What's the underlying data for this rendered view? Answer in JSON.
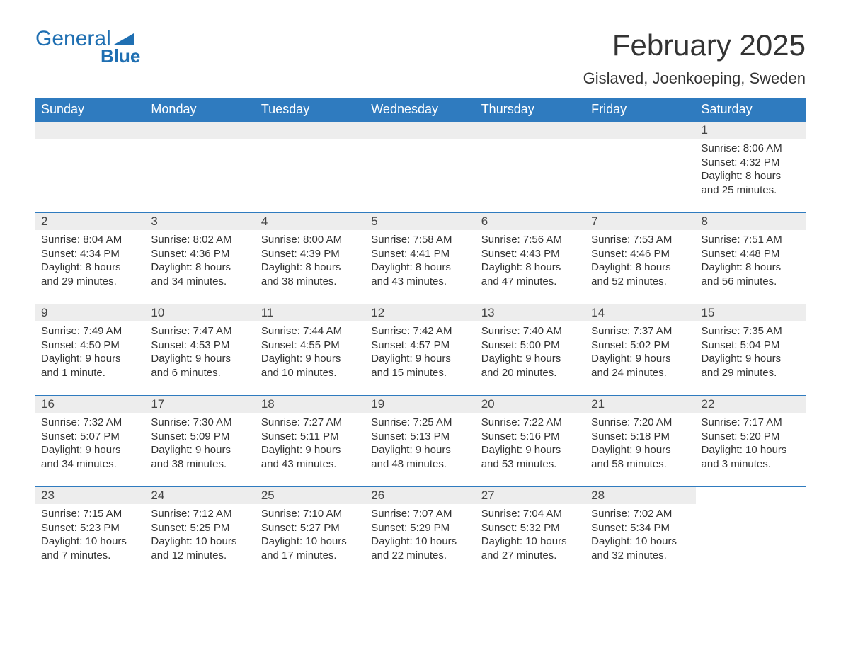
{
  "logo": {
    "word1": "General",
    "word2": "Blue",
    "icon_color": "#1f6fb2"
  },
  "header": {
    "month_title": "February 2025",
    "location": "Gislaved, Joenkoeping, Sweden"
  },
  "colors": {
    "header_bg": "#2f7bbf",
    "header_text": "#ffffff",
    "daynum_bg": "#ededed",
    "row_border": "#2f7bbf",
    "body_text": "#333333",
    "page_bg": "#ffffff"
  },
  "typography": {
    "title_fontsize": 42,
    "location_fontsize": 22,
    "weekday_fontsize": 18,
    "daynum_fontsize": 17,
    "cell_fontsize": 15,
    "font_family": "Arial"
  },
  "layout": {
    "columns": 7,
    "rows": 5,
    "first_day_column_index": 6
  },
  "weekdays": [
    "Sunday",
    "Monday",
    "Tuesday",
    "Wednesday",
    "Thursday",
    "Friday",
    "Saturday"
  ],
  "labels": {
    "sunrise": "Sunrise:",
    "sunset": "Sunset:",
    "daylight": "Daylight:"
  },
  "days": [
    {
      "n": 1,
      "sunrise": "8:06 AM",
      "sunset": "4:32 PM",
      "daylight": "8 hours and 25 minutes."
    },
    {
      "n": 2,
      "sunrise": "8:04 AM",
      "sunset": "4:34 PM",
      "daylight": "8 hours and 29 minutes."
    },
    {
      "n": 3,
      "sunrise": "8:02 AM",
      "sunset": "4:36 PM",
      "daylight": "8 hours and 34 minutes."
    },
    {
      "n": 4,
      "sunrise": "8:00 AM",
      "sunset": "4:39 PM",
      "daylight": "8 hours and 38 minutes."
    },
    {
      "n": 5,
      "sunrise": "7:58 AM",
      "sunset": "4:41 PM",
      "daylight": "8 hours and 43 minutes."
    },
    {
      "n": 6,
      "sunrise": "7:56 AM",
      "sunset": "4:43 PM",
      "daylight": "8 hours and 47 minutes."
    },
    {
      "n": 7,
      "sunrise": "7:53 AM",
      "sunset": "4:46 PM",
      "daylight": "8 hours and 52 minutes."
    },
    {
      "n": 8,
      "sunrise": "7:51 AM",
      "sunset": "4:48 PM",
      "daylight": "8 hours and 56 minutes."
    },
    {
      "n": 9,
      "sunrise": "7:49 AM",
      "sunset": "4:50 PM",
      "daylight": "9 hours and 1 minute."
    },
    {
      "n": 10,
      "sunrise": "7:47 AM",
      "sunset": "4:53 PM",
      "daylight": "9 hours and 6 minutes."
    },
    {
      "n": 11,
      "sunrise": "7:44 AM",
      "sunset": "4:55 PM",
      "daylight": "9 hours and 10 minutes."
    },
    {
      "n": 12,
      "sunrise": "7:42 AM",
      "sunset": "4:57 PM",
      "daylight": "9 hours and 15 minutes."
    },
    {
      "n": 13,
      "sunrise": "7:40 AM",
      "sunset": "5:00 PM",
      "daylight": "9 hours and 20 minutes."
    },
    {
      "n": 14,
      "sunrise": "7:37 AM",
      "sunset": "5:02 PM",
      "daylight": "9 hours and 24 minutes."
    },
    {
      "n": 15,
      "sunrise": "7:35 AM",
      "sunset": "5:04 PM",
      "daylight": "9 hours and 29 minutes."
    },
    {
      "n": 16,
      "sunrise": "7:32 AM",
      "sunset": "5:07 PM",
      "daylight": "9 hours and 34 minutes."
    },
    {
      "n": 17,
      "sunrise": "7:30 AM",
      "sunset": "5:09 PM",
      "daylight": "9 hours and 38 minutes."
    },
    {
      "n": 18,
      "sunrise": "7:27 AM",
      "sunset": "5:11 PM",
      "daylight": "9 hours and 43 minutes."
    },
    {
      "n": 19,
      "sunrise": "7:25 AM",
      "sunset": "5:13 PM",
      "daylight": "9 hours and 48 minutes."
    },
    {
      "n": 20,
      "sunrise": "7:22 AM",
      "sunset": "5:16 PM",
      "daylight": "9 hours and 53 minutes."
    },
    {
      "n": 21,
      "sunrise": "7:20 AM",
      "sunset": "5:18 PM",
      "daylight": "9 hours and 58 minutes."
    },
    {
      "n": 22,
      "sunrise": "7:17 AM",
      "sunset": "5:20 PM",
      "daylight": "10 hours and 3 minutes."
    },
    {
      "n": 23,
      "sunrise": "7:15 AM",
      "sunset": "5:23 PM",
      "daylight": "10 hours and 7 minutes."
    },
    {
      "n": 24,
      "sunrise": "7:12 AM",
      "sunset": "5:25 PM",
      "daylight": "10 hours and 12 minutes."
    },
    {
      "n": 25,
      "sunrise": "7:10 AM",
      "sunset": "5:27 PM",
      "daylight": "10 hours and 17 minutes."
    },
    {
      "n": 26,
      "sunrise": "7:07 AM",
      "sunset": "5:29 PM",
      "daylight": "10 hours and 22 minutes."
    },
    {
      "n": 27,
      "sunrise": "7:04 AM",
      "sunset": "5:32 PM",
      "daylight": "10 hours and 27 minutes."
    },
    {
      "n": 28,
      "sunrise": "7:02 AM",
      "sunset": "5:34 PM",
      "daylight": "10 hours and 32 minutes."
    }
  ]
}
